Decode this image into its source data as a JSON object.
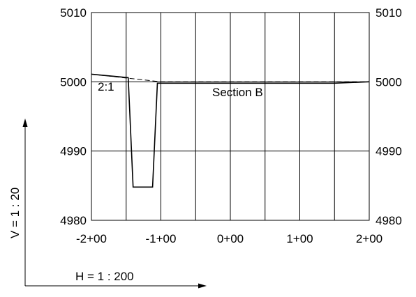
{
  "chart_data": {
    "type": "line",
    "title": "",
    "section_label": "Section B",
    "slope_label": "2:1",
    "xlim": [
      -200,
      200
    ],
    "ylim": [
      4980,
      5010
    ],
    "x_ticks": [
      -200,
      -150,
      -100,
      -50,
      0,
      50,
      100,
      150,
      200
    ],
    "x_tick_labels": [
      "-2+00",
      "-1+00",
      "0+00",
      "1+00",
      "2+00"
    ],
    "x_tick_label_values": [
      -200,
      -100,
      0,
      100,
      200
    ],
    "y_ticks": [
      4980,
      4990,
      5000,
      5010
    ],
    "y_tick_labels": [
      "4980",
      "4990",
      "5000",
      "5010"
    ],
    "grid": true,
    "series": [
      {
        "style": "solid",
        "x": [
          -200,
          -147,
          -140,
          -130,
          -112,
          -105,
          -100,
          150,
          200
        ],
        "y": [
          5001.1,
          5000.6,
          4984.8,
          4984.8,
          4984.8,
          4999.8,
          4999.8,
          4999.8,
          5000
        ]
      },
      {
        "style": "dashed",
        "x": [
          -200,
          -100,
          200
        ],
        "y": [
          5001.1,
          5000.0,
          5000.0
        ]
      }
    ],
    "vertical_scale_label": "V = 1 : 20",
    "horizontal_scale_label": "H = 1 : 200"
  }
}
